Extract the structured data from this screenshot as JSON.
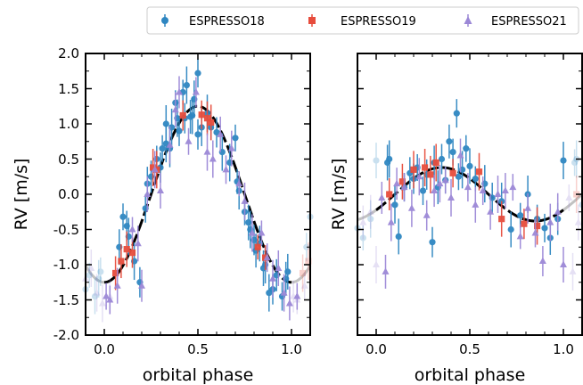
{
  "colors": {
    "ESPRESSO18": "#2e86c1",
    "ESPRESSO19": "#e74c3c",
    "ESPRESSO21": "#9b87d6",
    "model": "#000000"
  },
  "legend": [
    {
      "label": "ESPRESSO18",
      "marker": "circle"
    },
    {
      "label": "ESPRESSO19",
      "marker": "square"
    },
    {
      "label": "ESPRESSO21",
      "marker": "triangle"
    }
  ],
  "chart_data": [
    {
      "type": "scatter",
      "panel": "left",
      "xlabel": "orbital phase",
      "ylabel": "RV [m/s]",
      "xlim": [
        -0.1,
        1.1
      ],
      "ylim": [
        -2.0,
        2.0
      ],
      "xticks": [
        "0.0",
        "0.5",
        "1.0"
      ],
      "yticks": [
        "-2.0",
        "-1.5",
        "-1.0",
        "-0.5",
        "0.0",
        "0.5",
        "1.0",
        "1.5",
        "2.0"
      ],
      "model": {
        "amplitude": 1.25,
        "center_phase": 0.5,
        "shape": "sinusoid"
      },
      "series": [
        {
          "name": "ESPRESSO18",
          "marker": "circle",
          "points": [
            [
              0.08,
              -0.75
            ],
            [
              0.1,
              -0.32
            ],
            [
              0.12,
              -0.45
            ],
            [
              0.13,
              -0.6
            ],
            [
              0.16,
              -0.95
            ],
            [
              0.19,
              -1.25
            ],
            [
              0.22,
              -0.2
            ],
            [
              0.23,
              0.15
            ],
            [
              0.25,
              0.25
            ],
            [
              0.28,
              0.5
            ],
            [
              0.3,
              0.38
            ],
            [
              0.31,
              0.65
            ],
            [
              0.33,
              0.72
            ],
            [
              0.33,
              1.0
            ],
            [
              0.35,
              0.65
            ],
            [
              0.36,
              0.95
            ],
            [
              0.38,
              1.3
            ],
            [
              0.39,
              1.08
            ],
            [
              0.4,
              0.9
            ],
            [
              0.42,
              1.45
            ],
            [
              0.43,
              1.08
            ],
            [
              0.44,
              1.55
            ],
            [
              0.46,
              1.1
            ],
            [
              0.47,
              1.12
            ],
            [
              0.48,
              1.35
            ],
            [
              0.5,
              1.72
            ],
            [
              0.5,
              0.85
            ],
            [
              0.52,
              0.95
            ],
            [
              0.55,
              1.15
            ],
            [
              0.57,
              0.95
            ],
            [
              0.6,
              0.88
            ],
            [
              0.63,
              0.6
            ],
            [
              0.67,
              0.45
            ],
            [
              0.7,
              0.8
            ],
            [
              0.71,
              0.18
            ],
            [
              0.72,
              0.05
            ],
            [
              0.75,
              -0.25
            ],
            [
              0.77,
              -0.4
            ],
            [
              0.78,
              -0.5
            ],
            [
              0.8,
              -0.65
            ],
            [
              0.81,
              -0.8
            ],
            [
              0.83,
              -0.7
            ],
            [
              0.85,
              -1.05
            ],
            [
              0.86,
              -1.0
            ],
            [
              0.88,
              -1.4
            ],
            [
              0.9,
              -1.35
            ],
            [
              0.92,
              -1.15
            ],
            [
              0.95,
              -1.45
            ],
            [
              0.97,
              -1.2
            ],
            [
              0.98,
              -1.1
            ]
          ]
        },
        {
          "name": "ESPRESSO19",
          "marker": "square",
          "points": [
            [
              0.06,
              -1.12
            ],
            [
              0.09,
              -0.95
            ],
            [
              0.12,
              -0.78
            ],
            [
              0.15,
              -0.83
            ],
            [
              0.26,
              0.38
            ],
            [
              0.28,
              0.35
            ],
            [
              0.42,
              1.12
            ],
            [
              0.52,
              1.13
            ],
            [
              0.55,
              1.08
            ],
            [
              0.57,
              1.02
            ],
            [
              0.82,
              -0.75
            ],
            [
              0.86,
              -0.9
            ]
          ]
        },
        {
          "name": "ESPRESSO21",
          "marker": "triangle",
          "points": [
            [
              0.01,
              -1.45
            ],
            [
              0.03,
              -1.5
            ],
            [
              0.07,
              -1.3
            ],
            [
              0.15,
              -0.5
            ],
            [
              0.18,
              -0.7
            ],
            [
              0.2,
              -1.3
            ],
            [
              0.23,
              0.0
            ],
            [
              0.27,
              0.35
            ],
            [
              0.3,
              0.05
            ],
            [
              0.35,
              0.7
            ],
            [
              0.38,
              1.2
            ],
            [
              0.4,
              1.45
            ],
            [
              0.45,
              0.75
            ],
            [
              0.49,
              1.45
            ],
            [
              0.55,
              0.6
            ],
            [
              0.58,
              0.5
            ],
            [
              0.62,
              0.85
            ],
            [
              0.65,
              0.35
            ],
            [
              0.68,
              0.65
            ],
            [
              0.72,
              0.15
            ],
            [
              0.75,
              -0.1
            ],
            [
              0.79,
              -0.55
            ],
            [
              0.84,
              -0.55
            ],
            [
              0.87,
              -0.9
            ],
            [
              0.9,
              -1.2
            ],
            [
              0.93,
              -1.05
            ],
            [
              0.96,
              -1.4
            ],
            [
              0.99,
              -1.55
            ],
            [
              1.03,
              -1.45
            ]
          ]
        }
      ]
    },
    {
      "type": "scatter",
      "panel": "right",
      "xlabel": "orbital phase",
      "ylabel": "RV [m/s]",
      "xlim": [
        -0.1,
        1.1
      ],
      "ylim": [
        -2.0,
        2.0
      ],
      "xticks": [
        "0.0",
        "0.5",
        "1.0"
      ],
      "model": {
        "amplitude": 0.38,
        "center_phase": 0.35,
        "shape": "sinusoid"
      },
      "series": [
        {
          "name": "ESPRESSO18",
          "marker": "circle",
          "points": [
            [
              0.06,
              0.45
            ],
            [
              0.07,
              0.5
            ],
            [
              0.1,
              -0.15
            ],
            [
              0.12,
              -0.6
            ],
            [
              0.15,
              0.1
            ],
            [
              0.18,
              0.3
            ],
            [
              0.2,
              0.22
            ],
            [
              0.22,
              0.38
            ],
            [
              0.25,
              0.05
            ],
            [
              0.27,
              0.28
            ],
            [
              0.3,
              -0.68
            ],
            [
              0.31,
              0.45
            ],
            [
              0.33,
              0.1
            ],
            [
              0.35,
              0.5
            ],
            [
              0.37,
              0.2
            ],
            [
              0.39,
              0.75
            ],
            [
              0.41,
              0.6
            ],
            [
              0.43,
              1.15
            ],
            [
              0.44,
              0.25
            ],
            [
              0.46,
              0.35
            ],
            [
              0.48,
              0.65
            ],
            [
              0.5,
              0.4
            ],
            [
              0.53,
              0.22
            ],
            [
              0.58,
              0.15
            ],
            [
              0.62,
              -0.05
            ],
            [
              0.67,
              -0.1
            ],
            [
              0.72,
              -0.5
            ],
            [
              0.77,
              -0.3
            ],
            [
              0.81,
              0.0
            ],
            [
              0.86,
              -0.35
            ],
            [
              0.9,
              -0.48
            ],
            [
              0.93,
              -0.62
            ],
            [
              0.97,
              -0.35
            ],
            [
              1.0,
              0.48
            ]
          ]
        },
        {
          "name": "ESPRESSO19",
          "marker": "square",
          "points": [
            [
              0.07,
              0.0
            ],
            [
              0.14,
              0.18
            ],
            [
              0.2,
              0.35
            ],
            [
              0.26,
              0.38
            ],
            [
              0.29,
              0.28
            ],
            [
              0.32,
              0.45
            ],
            [
              0.41,
              0.3
            ],
            [
              0.55,
              0.32
            ],
            [
              0.67,
              -0.35
            ],
            [
              0.79,
              -0.42
            ],
            [
              0.86,
              -0.45
            ]
          ]
        },
        {
          "name": "ESPRESSO21",
          "marker": "triangle",
          "points": [
            [
              0.03,
              -0.05
            ],
            [
              0.05,
              -1.1
            ],
            [
              0.08,
              -0.4
            ],
            [
              0.11,
              0.15
            ],
            [
              0.15,
              0.1
            ],
            [
              0.19,
              -0.2
            ],
            [
              0.23,
              0.25
            ],
            [
              0.27,
              -0.3
            ],
            [
              0.31,
              0.05
            ],
            [
              0.34,
              0.15
            ],
            [
              0.37,
              0.2
            ],
            [
              0.4,
              -0.05
            ],
            [
              0.45,
              0.55
            ],
            [
              0.49,
              0.1
            ],
            [
              0.53,
              -0.15
            ],
            [
              0.57,
              0.05
            ],
            [
              0.61,
              -0.25
            ],
            [
              0.65,
              0.0
            ],
            [
              0.69,
              0.05
            ],
            [
              0.73,
              0.1
            ],
            [
              0.77,
              -0.6
            ],
            [
              0.81,
              -0.2
            ],
            [
              0.85,
              -0.55
            ],
            [
              0.89,
              -0.95
            ],
            [
              0.93,
              -0.4
            ],
            [
              0.97,
              -0.25
            ],
            [
              1.0,
              -1.0
            ]
          ]
        }
      ]
    }
  ]
}
